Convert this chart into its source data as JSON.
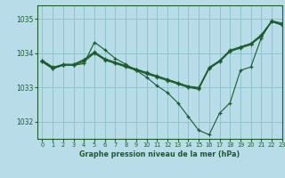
{
  "title": "Graphe pression niveau de la mer (hPa)",
  "bg_color": "#b8dde8",
  "grid_color": "#8ec4cc",
  "line_color": "#1a5c2a",
  "xlim": [
    -0.5,
    23
  ],
  "ylim": [
    1031.5,
    1035.4
  ],
  "yticks": [
    1032,
    1033,
    1034,
    1035
  ],
  "xticks": [
    0,
    1,
    2,
    3,
    4,
    5,
    6,
    7,
    8,
    9,
    10,
    11,
    12,
    13,
    14,
    15,
    16,
    17,
    18,
    19,
    20,
    21,
    22,
    23
  ],
  "series": [
    [
      1033.8,
      1033.6,
      1033.65,
      1033.65,
      1033.7,
      1034.32,
      1034.1,
      1033.85,
      1033.68,
      1033.5,
      1033.3,
      1033.05,
      1032.85,
      1032.55,
      1032.15,
      1031.75,
      1031.62,
      1032.25,
      1032.55,
      1033.5,
      1033.6,
      1034.45,
      1034.95,
      1034.88
    ],
    [
      1033.75,
      1033.55,
      1033.65,
      1033.65,
      1033.75,
      1034.0,
      1033.8,
      1033.7,
      1033.6,
      1033.5,
      1033.4,
      1033.3,
      1033.2,
      1033.1,
      1033.0,
      1032.95,
      1033.55,
      1033.75,
      1034.05,
      1034.15,
      1034.25,
      1034.5,
      1034.92,
      1034.82
    ],
    [
      1033.75,
      1033.55,
      1033.65,
      1033.65,
      1033.8,
      1034.02,
      1033.82,
      1033.72,
      1033.62,
      1033.52,
      1033.42,
      1033.32,
      1033.22,
      1033.12,
      1033.02,
      1032.98,
      1033.57,
      1033.77,
      1034.07,
      1034.17,
      1034.27,
      1034.52,
      1034.93,
      1034.83
    ],
    [
      1033.78,
      1033.58,
      1033.68,
      1033.68,
      1033.82,
      1034.04,
      1033.84,
      1033.74,
      1033.64,
      1033.54,
      1033.44,
      1033.34,
      1033.24,
      1033.14,
      1033.04,
      1033.0,
      1033.59,
      1033.79,
      1034.09,
      1034.19,
      1034.29,
      1034.54,
      1034.94,
      1034.84
    ]
  ]
}
